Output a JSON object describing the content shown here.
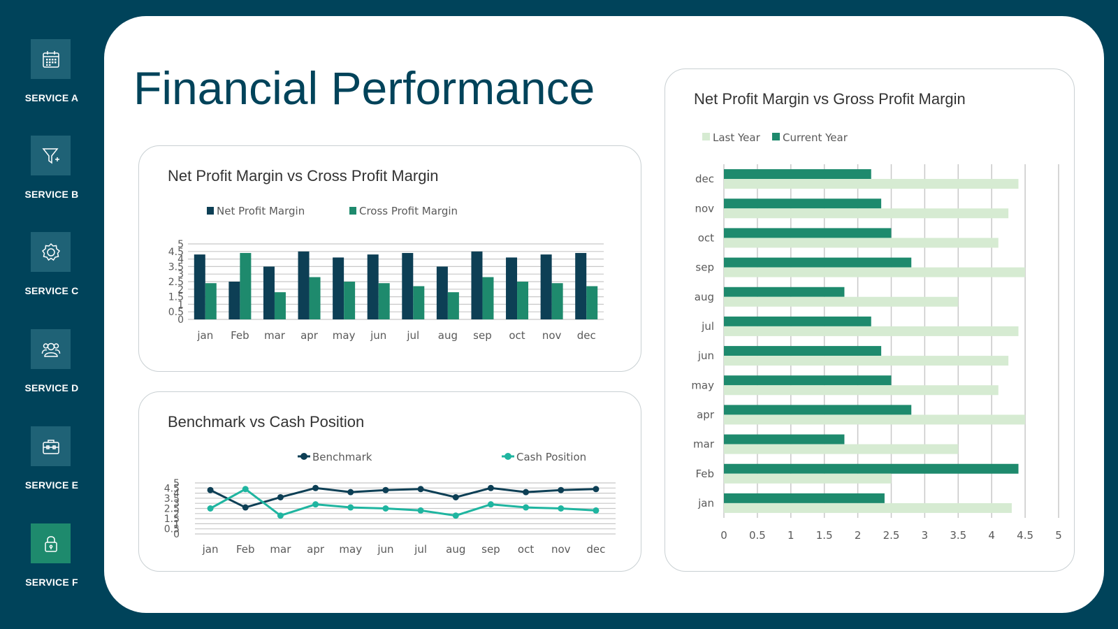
{
  "page": {
    "title": "Financial Performance"
  },
  "sidebar": {
    "items": [
      {
        "label": "SERVICE A",
        "icon": "calendar-icon"
      },
      {
        "label": "SERVICE B",
        "icon": "funnel-icon"
      },
      {
        "label": "SERVICE C",
        "icon": "gear-icon"
      },
      {
        "label": "SERVICE D",
        "icon": "users-icon"
      },
      {
        "label": "SERVICE E",
        "icon": "briefcase-icon"
      },
      {
        "label": "SERVICE F",
        "icon": "lock-icon",
        "active": true
      }
    ]
  },
  "colors": {
    "background": "#00435a",
    "tile": "#1f6276",
    "active_tile": "#1e8a6d",
    "dark_series": "#0d3f55",
    "green_series": "#1e8a6d",
    "teal_series": "#1fb5a0",
    "light_series": "#d6ebd2"
  },
  "chart_data": [
    {
      "id": "bar-chart",
      "type": "bar",
      "title": "Net Profit Margin vs Cross Profit Margin",
      "categories": [
        "jan",
        "Feb",
        "mar",
        "apr",
        "may",
        "jun",
        "jul",
        "aug",
        "sep",
        "oct",
        "nov",
        "dec"
      ],
      "series": [
        {
          "name": "Net Profit Margin",
          "color": "#0d3f55",
          "values": [
            4.3,
            2.5,
            3.5,
            4.5,
            4.1,
            4.3,
            4.4,
            3.5,
            4.5,
            4.1,
            4.3,
            4.4
          ]
        },
        {
          "name": "Cross Profit Margin",
          "color": "#1e8a6d",
          "values": [
            2.4,
            4.4,
            1.8,
            2.8,
            2.5,
            2.4,
            2.2,
            1.8,
            2.8,
            2.5,
            2.4,
            2.2
          ]
        }
      ],
      "ylim": [
        0,
        5
      ],
      "yticks": [
        "0",
        "0.5",
        "1",
        "1.5",
        "2",
        "2.5",
        "3",
        "3.5",
        "4",
        "4.5",
        "5"
      ],
      "grid": true,
      "legend": "top"
    },
    {
      "id": "line-chart",
      "type": "line",
      "title": "Benchmark vs Cash Position",
      "categories": [
        "jan",
        "Feb",
        "mar",
        "apr",
        "may",
        "jun",
        "jul",
        "aug",
        "sep",
        "oct",
        "nov",
        "dec"
      ],
      "series": [
        {
          "name": "Benchmark",
          "color": "#0d3f55",
          "values": [
            4.3,
            2.6,
            3.6,
            4.5,
            4.1,
            4.3,
            4.4,
            3.6,
            4.5,
            4.1,
            4.3,
            4.4
          ]
        },
        {
          "name": "Cash Position",
          "color": "#1fb5a0",
          "values": [
            2.5,
            4.4,
            1.8,
            2.9,
            2.6,
            2.5,
            2.3,
            1.8,
            2.9,
            2.6,
            2.5,
            2.3
          ]
        }
      ],
      "ylim": [
        0,
        5
      ],
      "yticks": [
        "0",
        "0.5",
        "1",
        "1.5",
        "2",
        "2.5",
        "3",
        "3.5",
        "4",
        "4.5",
        "5"
      ],
      "grid": true,
      "legend": "top"
    },
    {
      "id": "hbar-chart",
      "type": "bar",
      "orientation": "horizontal",
      "title": "Net Profit Margin vs Gross Profit Margin",
      "categories": [
        "jan",
        "Feb",
        "mar",
        "apr",
        "may",
        "jun",
        "jul",
        "aug",
        "sep",
        "oct",
        "nov",
        "dec"
      ],
      "series": [
        {
          "name": "Last Year",
          "color": "#d6ebd2",
          "values": [
            4.3,
            2.5,
            3.5,
            4.5,
            4.1,
            4.25,
            4.4,
            3.5,
            4.5,
            4.1,
            4.25,
            4.4
          ]
        },
        {
          "name": "Current Year",
          "color": "#1e8a6d",
          "values": [
            2.4,
            4.4,
            1.8,
            2.8,
            2.5,
            2.35,
            2.2,
            1.8,
            2.8,
            2.5,
            2.35,
            2.2
          ]
        }
      ],
      "xlim": [
        0,
        5
      ],
      "xticks": [
        "0",
        "0.5",
        "1",
        "1.5",
        "2",
        "2.5",
        "3",
        "3.5",
        "4",
        "4.5",
        "5"
      ],
      "grid": true,
      "legend": "top-left"
    }
  ]
}
